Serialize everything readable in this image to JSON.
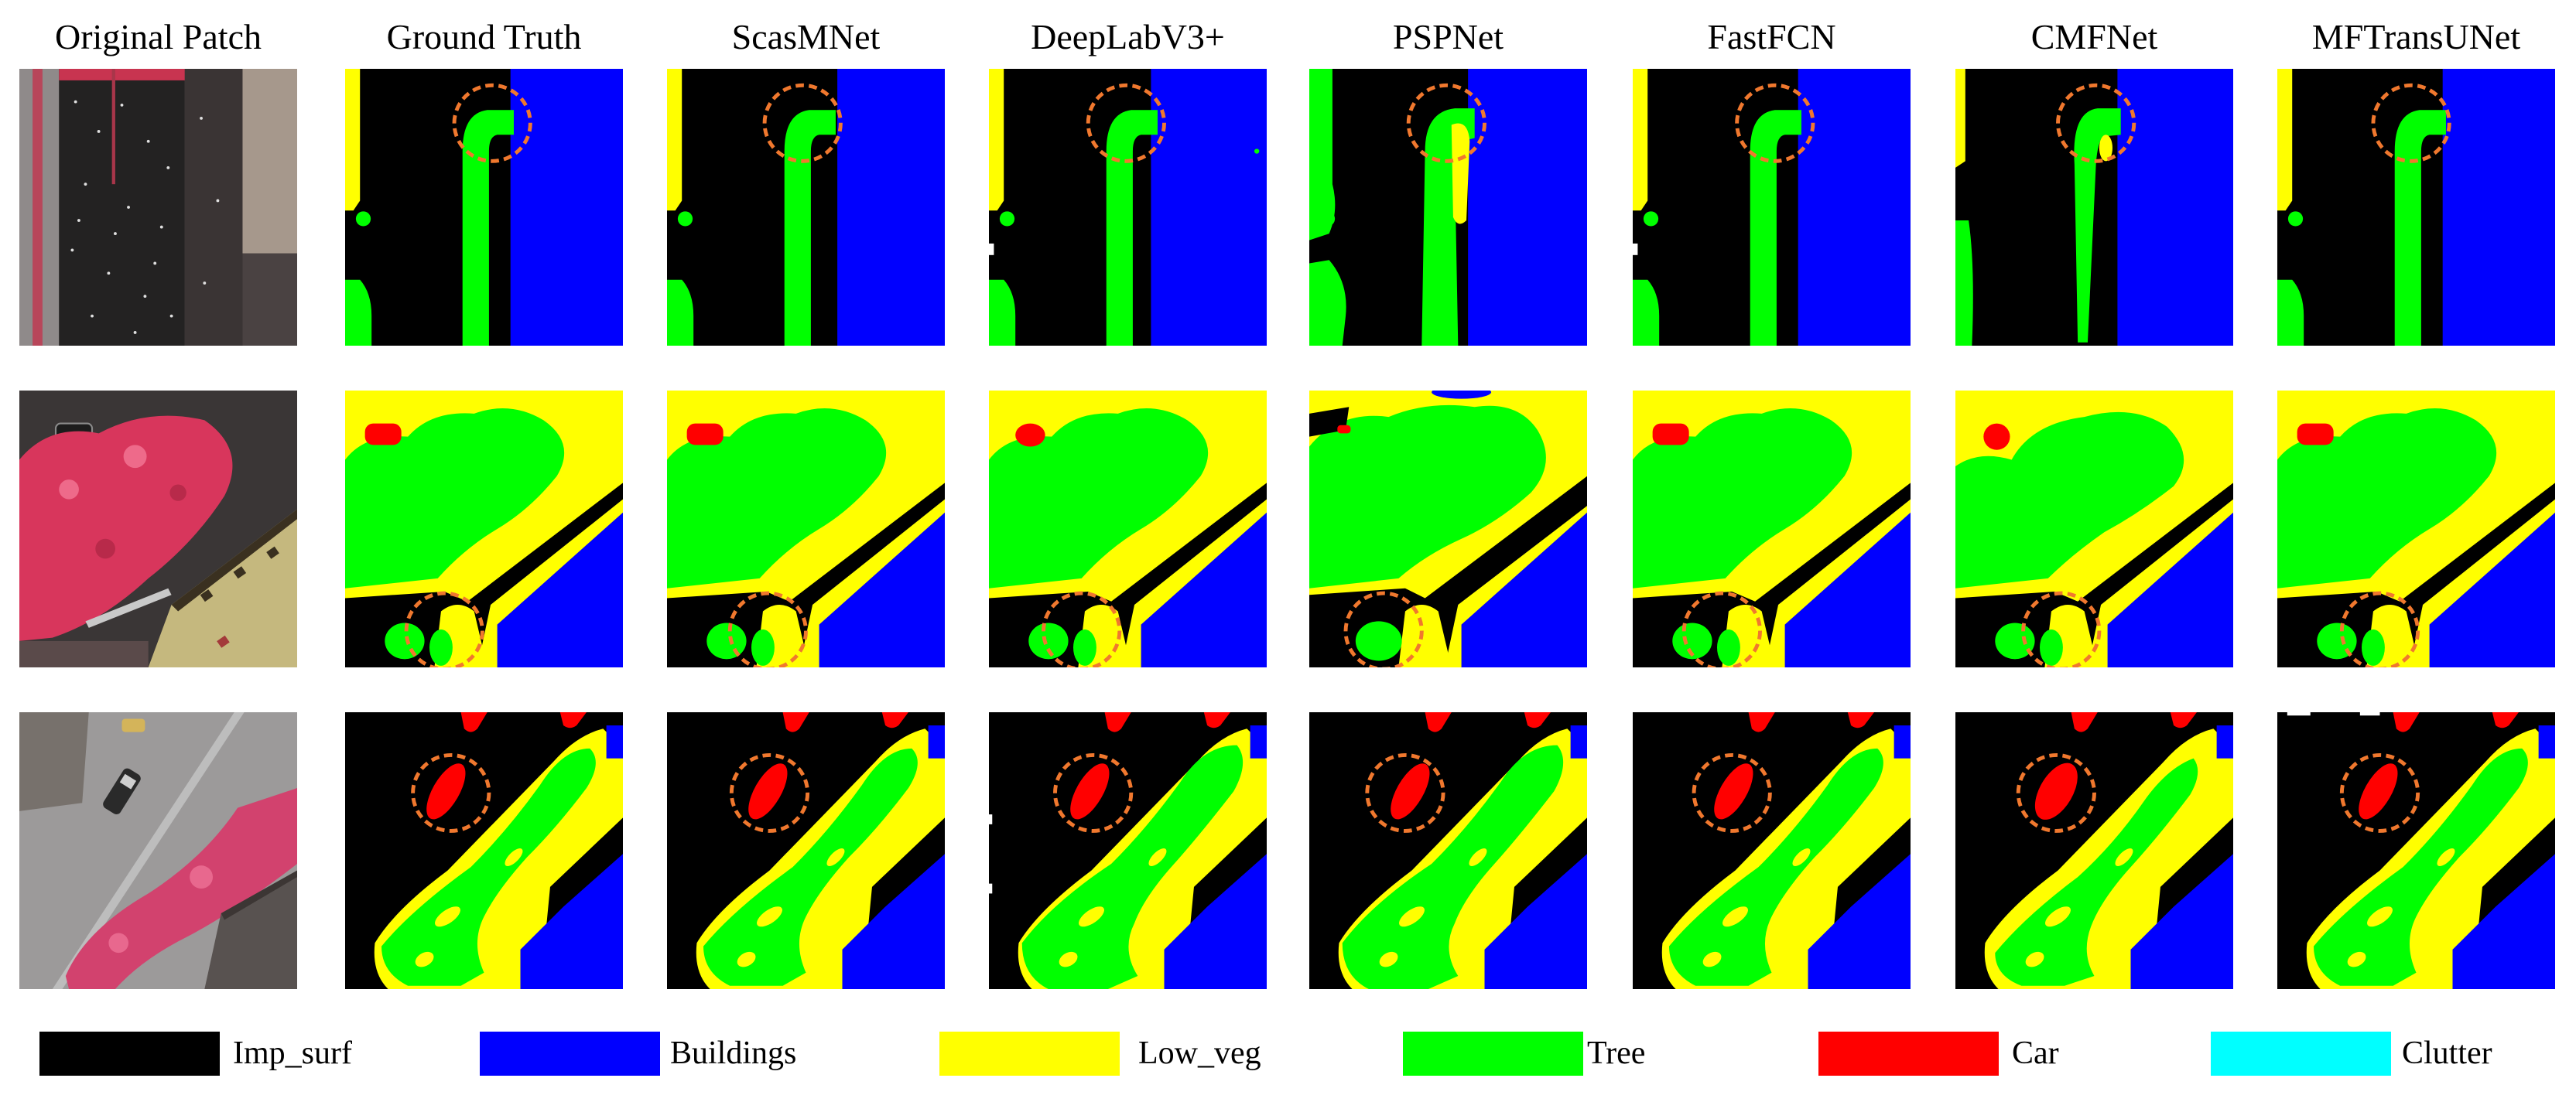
{
  "columns": [
    "Original Patch",
    "Ground Truth",
    "ScasMNet",
    "DeepLabV3+",
    "PSPNet",
    "FastFCN",
    "CMFNet",
    "MFTransUNet"
  ],
  "legend": [
    {
      "label": "Imp_surf",
      "color": "#000000"
    },
    {
      "label": "Buildings",
      "color": "#0000ff"
    },
    {
      "label": "Low_veg",
      "color": "#ffff00"
    },
    {
      "label": "Tree",
      "color": "#00ff00"
    },
    {
      "label": "Car",
      "color": "#ff0000"
    },
    {
      "label": "Clutter",
      "color": "#00ffff"
    }
  ],
  "highlight_color": "#f0782e"
}
